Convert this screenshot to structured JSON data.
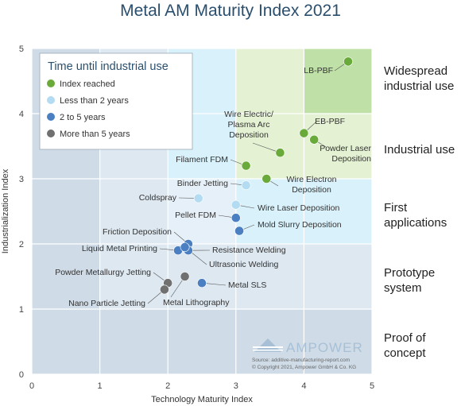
{
  "chart_data": {
    "type": "scatter",
    "title": "Metal AM Maturity Index 2021",
    "xlabel": "Technology Maturity Index",
    "ylabel": "Industrialization Index",
    "xlim": [
      0,
      5
    ],
    "ylim": [
      0,
      5
    ],
    "x_ticks": [
      "0",
      "1",
      "2",
      "3",
      "4",
      "5"
    ],
    "y_ticks": [
      "0",
      "1",
      "2",
      "3",
      "4",
      "5"
    ],
    "grid": true,
    "legend": {
      "title": "Time until industrial use",
      "placement": "top-left",
      "entries": [
        {
          "name": "Index reached",
          "color": "#6aaa3a"
        },
        {
          "name": "Less than 2 years",
          "color": "#b3dcf2"
        },
        {
          "name": "2 to 5 years",
          "color": "#4a7fc1"
        },
        {
          "name": "More than 5 years",
          "color": "#707070"
        }
      ]
    },
    "bands": [
      {
        "label": "Widespread industrial use",
        "lines": [
          "Widespread",
          "industrial use"
        ],
        "y_center": 4.55
      },
      {
        "label": "Industrial use",
        "lines": [
          "Industrial use"
        ],
        "y_center": 3.45
      },
      {
        "label": "First applications",
        "lines": [
          "First",
          "applications"
        ],
        "y_center": 2.45
      },
      {
        "label": "Prototype system",
        "lines": [
          "Prototype",
          "system"
        ],
        "y_center": 1.45
      },
      {
        "label": "Proof of concept",
        "lines": [
          "Proof of",
          "concept"
        ],
        "y_center": 0.45
      }
    ],
    "series": [
      {
        "name": "Index reached",
        "color": "#6aaa3a",
        "points": [
          {
            "label": "LB-PBF",
            "x": 4.65,
            "y": 4.8
          },
          {
            "label": "EB-PBF",
            "x": 4.0,
            "y": 3.7
          },
          {
            "label": "Powder Laser Deposition",
            "x": 4.15,
            "y": 3.6
          },
          {
            "label": "Wire Electric/ Plasma Arc Deposition",
            "x": 3.65,
            "y": 3.4
          },
          {
            "label": "Filament FDM",
            "x": 3.15,
            "y": 3.2
          },
          {
            "label": "Wire Electron Deposition",
            "x": 3.45,
            "y": 3.0
          }
        ]
      },
      {
        "name": "Less than 2 years",
        "color": "#b3dcf2",
        "points": [
          {
            "label": "Binder Jetting",
            "x": 3.15,
            "y": 2.9
          },
          {
            "label": "Coldspray",
            "x": 2.45,
            "y": 2.7
          },
          {
            "label": "Wire Laser Deposition",
            "x": 3.0,
            "y": 2.6
          }
        ]
      },
      {
        "name": "2 to 5 years",
        "color": "#4a7fc1",
        "points": [
          {
            "label": "Pellet FDM",
            "x": 3.0,
            "y": 2.4
          },
          {
            "label": "Mold Slurry Deposition",
            "x": 3.05,
            "y": 2.2
          },
          {
            "label": "Friction Deposition",
            "x": 2.3,
            "y": 2.0
          },
          {
            "label": "Liquid Metal Printing",
            "x": 2.15,
            "y": 1.9
          },
          {
            "label": "Resistance Welding",
            "x": 2.3,
            "y": 1.9
          },
          {
            "label": "Ultrasonic Welding",
            "x": 2.25,
            "y": 1.95
          },
          {
            "label": "Metal SLS",
            "x": 2.5,
            "y": 1.4
          }
        ]
      },
      {
        "name": "More than 5 years",
        "color": "#707070",
        "points": [
          {
            "label": "Powder Metallurgy Jetting",
            "x": 2.0,
            "y": 1.4
          },
          {
            "label": "Metal Lithography",
            "x": 2.25,
            "y": 1.5
          },
          {
            "label": "Nano Particle Jetting",
            "x": 1.95,
            "y": 1.3
          }
        ]
      }
    ]
  },
  "brand": {
    "name": "AMPOWER",
    "source": "Source: additive-manufacturing-report.com",
    "copyright": "© Copyright 2021, Ampower GmbH & Co. KG"
  }
}
